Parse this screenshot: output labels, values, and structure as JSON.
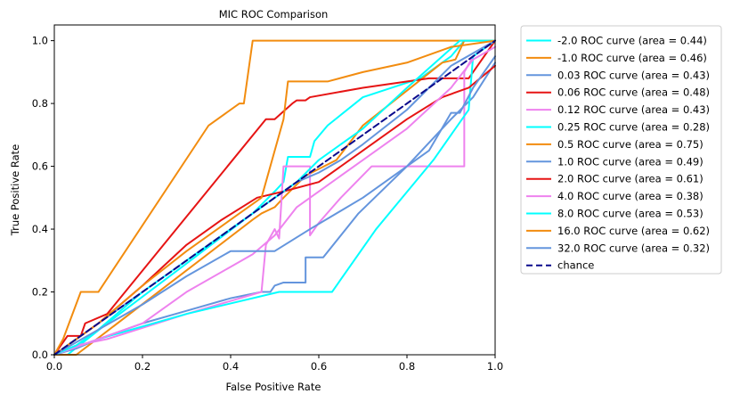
{
  "chart_data": {
    "type": "line",
    "title": "MIC ROC Comparison",
    "xlabel": "False Positive Rate",
    "ylabel": "True Positive Rate",
    "xlim": [
      0.0,
      1.0
    ],
    "ylim": [
      0.0,
      1.05
    ],
    "xticks": [
      "0.0",
      "0.2",
      "0.4",
      "0.6",
      "0.8",
      "1.0"
    ],
    "yticks": [
      "0.0",
      "0.2",
      "0.4",
      "0.6",
      "0.8",
      "1.0"
    ],
    "legend_position": "outside-right",
    "grid": false,
    "series": [
      {
        "name": "-2.0 ROC curve (area = 0.44)",
        "color": "#00ffff",
        "dashed": false,
        "points": [
          [
            0,
            0
          ],
          [
            0.03,
            0.0
          ],
          [
            0.12,
            0.1
          ],
          [
            0.29,
            0.28
          ],
          [
            0.45,
            0.45
          ],
          [
            0.5,
            0.52
          ],
          [
            0.52,
            0.55
          ],
          [
            0.53,
            0.63
          ],
          [
            0.58,
            0.63
          ],
          [
            0.59,
            0.68
          ],
          [
            0.62,
            0.73
          ],
          [
            0.7,
            0.82
          ],
          [
            0.83,
            0.88
          ],
          [
            0.9,
            0.95
          ],
          [
            0.93,
            1.0
          ],
          [
            1.0,
            1.0
          ]
        ]
      },
      {
        "name": "-1.0 ROC curve (area = 0.46)",
        "color": "#f28c0f",
        "dashed": false,
        "points": [
          [
            0,
            0
          ],
          [
            0.05,
            0.0
          ],
          [
            0.45,
            0.43
          ],
          [
            0.47,
            0.45
          ],
          [
            0.5,
            0.47
          ],
          [
            0.52,
            0.5
          ],
          [
            0.57,
            0.57
          ],
          [
            0.64,
            0.62
          ],
          [
            0.7,
            0.73
          ],
          [
            0.88,
            0.93
          ],
          [
            0.91,
            0.94
          ],
          [
            0.93,
            1.0
          ],
          [
            1.0,
            1.0
          ]
        ]
      },
      {
        "name": "0.03 ROC curve (area = 0.43)",
        "color": "#6495dd",
        "dashed": false,
        "points": [
          [
            0,
            0
          ],
          [
            0.05,
            0.02
          ],
          [
            0.1,
            0.05
          ],
          [
            0.2,
            0.1
          ],
          [
            0.3,
            0.14
          ],
          [
            0.4,
            0.18
          ],
          [
            0.47,
            0.2
          ],
          [
            0.49,
            0.2
          ],
          [
            0.5,
            0.22
          ],
          [
            0.52,
            0.23
          ],
          [
            0.57,
            0.23
          ],
          [
            0.57,
            0.31
          ],
          [
            0.61,
            0.31
          ],
          [
            0.69,
            0.45
          ],
          [
            0.8,
            0.6
          ],
          [
            0.9,
            0.75
          ],
          [
            0.95,
            0.82
          ],
          [
            1.0,
            0.93
          ]
        ]
      },
      {
        "name": "0.06 ROC curve (area = 0.48)",
        "color": "#e61414",
        "dashed": false,
        "points": [
          [
            0,
            0
          ],
          [
            0.01,
            0.02
          ],
          [
            0.03,
            0.06
          ],
          [
            0.06,
            0.06
          ],
          [
            0.07,
            0.1
          ],
          [
            0.12,
            0.13
          ],
          [
            0.48,
            0.75
          ],
          [
            0.5,
            0.75
          ],
          [
            0.54,
            0.8
          ],
          [
            0.55,
            0.81
          ],
          [
            0.57,
            0.81
          ],
          [
            0.58,
            0.82
          ],
          [
            0.7,
            0.85
          ],
          [
            0.85,
            0.88
          ],
          [
            0.94,
            0.88
          ],
          [
            1.0,
            1.0
          ]
        ]
      },
      {
        "name": "0.12 ROC curve (area = 0.43)",
        "color": "#ee82ee",
        "dashed": false,
        "points": [
          [
            0,
            0
          ],
          [
            0.05,
            0.03
          ],
          [
            0.12,
            0.05
          ],
          [
            0.3,
            0.13
          ],
          [
            0.47,
            0.2
          ],
          [
            0.48,
            0.35
          ],
          [
            0.5,
            0.4
          ],
          [
            0.51,
            0.37
          ],
          [
            0.52,
            0.6
          ],
          [
            0.58,
            0.6
          ],
          [
            0.58,
            0.38
          ],
          [
            0.6,
            0.42
          ],
          [
            0.65,
            0.5
          ],
          [
            0.72,
            0.6
          ],
          [
            0.93,
            0.6
          ],
          [
            0.93,
            0.9
          ],
          [
            0.95,
            0.95
          ],
          [
            1.0,
            1.0
          ]
        ]
      },
      {
        "name": "0.25 ROC curve (area = 0.28)",
        "color": "#00ffff",
        "dashed": false,
        "points": [
          [
            0,
            0
          ],
          [
            0.1,
            0.05
          ],
          [
            0.3,
            0.13
          ],
          [
            0.51,
            0.2
          ],
          [
            0.63,
            0.2
          ],
          [
            0.73,
            0.4
          ],
          [
            0.86,
            0.62
          ],
          [
            0.94,
            0.78
          ],
          [
            0.95,
            0.95
          ],
          [
            0.98,
            0.98
          ],
          [
            1.0,
            1.0
          ]
        ]
      },
      {
        "name": "0.5 ROC curve (area = 0.75)",
        "color": "#f28c0f",
        "dashed": false,
        "points": [
          [
            0,
            0
          ],
          [
            0.02,
            0.05
          ],
          [
            0.06,
            0.2
          ],
          [
            0.1,
            0.2
          ],
          [
            0.35,
            0.73
          ],
          [
            0.42,
            0.8
          ],
          [
            0.43,
            0.8
          ],
          [
            0.45,
            1.0
          ],
          [
            1.0,
            1.0
          ]
        ]
      },
      {
        "name": "1.0 ROC curve (area = 0.49)",
        "color": "#6495dd",
        "dashed": false,
        "points": [
          [
            0,
            0
          ],
          [
            0.1,
            0.1
          ],
          [
            0.2,
            0.2
          ],
          [
            0.3,
            0.3
          ],
          [
            0.4,
            0.4
          ],
          [
            0.5,
            0.5
          ],
          [
            0.55,
            0.55
          ],
          [
            0.6,
            0.58
          ],
          [
            0.65,
            0.62
          ],
          [
            0.7,
            0.67
          ],
          [
            0.8,
            0.78
          ],
          [
            0.85,
            0.85
          ],
          [
            0.9,
            0.92
          ],
          [
            1.0,
            1.0
          ]
        ]
      },
      {
        "name": "2.0 ROC curve (area = 0.61)",
        "color": "#e61414",
        "dashed": false,
        "points": [
          [
            0,
            0
          ],
          [
            0.05,
            0.05
          ],
          [
            0.1,
            0.1
          ],
          [
            0.2,
            0.22
          ],
          [
            0.3,
            0.35
          ],
          [
            0.38,
            0.43
          ],
          [
            0.46,
            0.5
          ],
          [
            0.52,
            0.52
          ],
          [
            0.6,
            0.55
          ],
          [
            0.7,
            0.65
          ],
          [
            0.8,
            0.75
          ],
          [
            0.88,
            0.82
          ],
          [
            0.94,
            0.85
          ],
          [
            1.0,
            0.92
          ]
        ]
      },
      {
        "name": "4.0 ROC curve (area = 0.38)",
        "color": "#ee82ee",
        "dashed": false,
        "points": [
          [
            0,
            0
          ],
          [
            0.1,
            0.05
          ],
          [
            0.2,
            0.1
          ],
          [
            0.3,
            0.2
          ],
          [
            0.4,
            0.28
          ],
          [
            0.45,
            0.32
          ],
          [
            0.5,
            0.38
          ],
          [
            0.55,
            0.47
          ],
          [
            0.6,
            0.52
          ],
          [
            0.7,
            0.62
          ],
          [
            0.8,
            0.72
          ],
          [
            0.9,
            0.85
          ],
          [
            0.95,
            0.94
          ],
          [
            1.0,
            0.98
          ]
        ]
      },
      {
        "name": "8.0 ROC curve (area = 0.53)",
        "color": "#00ffff",
        "dashed": false,
        "points": [
          [
            0,
            0
          ],
          [
            0.05,
            0.03
          ],
          [
            0.1,
            0.08
          ],
          [
            0.2,
            0.2
          ],
          [
            0.3,
            0.3
          ],
          [
            0.4,
            0.4
          ],
          [
            0.45,
            0.45
          ],
          [
            0.55,
            0.55
          ],
          [
            0.6,
            0.62
          ],
          [
            0.7,
            0.72
          ],
          [
            0.8,
            0.85
          ],
          [
            0.88,
            0.95
          ],
          [
            0.92,
            1.0
          ],
          [
            1.0,
            1.0
          ]
        ]
      },
      {
        "name": "16.0 ROC curve (area = 0.62)",
        "color": "#f28c0f",
        "dashed": false,
        "points": [
          [
            0,
            0
          ],
          [
            0.05,
            0.05
          ],
          [
            0.1,
            0.1
          ],
          [
            0.2,
            0.22
          ],
          [
            0.3,
            0.33
          ],
          [
            0.4,
            0.43
          ],
          [
            0.47,
            0.5
          ],
          [
            0.52,
            0.75
          ],
          [
            0.53,
            0.87
          ],
          [
            0.59,
            0.87
          ],
          [
            0.62,
            0.87
          ],
          [
            0.7,
            0.9
          ],
          [
            0.8,
            0.93
          ],
          [
            0.9,
            0.98
          ],
          [
            1.0,
            1.0
          ]
        ]
      },
      {
        "name": "32.0 ROC curve (area = 0.32)",
        "color": "#6495dd",
        "dashed": false,
        "points": [
          [
            0,
            0
          ],
          [
            0.1,
            0.08
          ],
          [
            0.2,
            0.16
          ],
          [
            0.3,
            0.25
          ],
          [
            0.4,
            0.33
          ],
          [
            0.5,
            0.33
          ],
          [
            0.58,
            0.4
          ],
          [
            0.7,
            0.5
          ],
          [
            0.8,
            0.6
          ],
          [
            0.85,
            0.65
          ],
          [
            0.9,
            0.77
          ],
          [
            0.92,
            0.77
          ],
          [
            0.95,
            0.85
          ],
          [
            1.0,
            0.95
          ]
        ]
      },
      {
        "name": "chance",
        "color": "#0a0a8c",
        "dashed": true,
        "points": [
          [
            0,
            0
          ],
          [
            1,
            1
          ]
        ]
      }
    ]
  }
}
